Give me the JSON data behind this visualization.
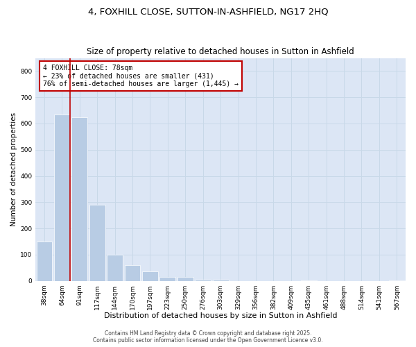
{
  "title": "4, FOXHILL CLOSE, SUTTON-IN-ASHFIELD, NG17 2HQ",
  "subtitle": "Size of property relative to detached houses in Sutton in Ashfield",
  "xlabel": "Distribution of detached houses by size in Sutton in Ashfield",
  "ylabel": "Number of detached properties",
  "categories": [
    "38sqm",
    "64sqm",
    "91sqm",
    "117sqm",
    "144sqm",
    "170sqm",
    "197sqm",
    "223sqm",
    "250sqm",
    "276sqm",
    "303sqm",
    "329sqm",
    "356sqm",
    "382sqm",
    "409sqm",
    "435sqm",
    "461sqm",
    "488sqm",
    "514sqm",
    "541sqm",
    "567sqm"
  ],
  "values": [
    150,
    635,
    625,
    290,
    100,
    60,
    35,
    15,
    15,
    5,
    5,
    0,
    0,
    0,
    0,
    2,
    0,
    0,
    0,
    0,
    2
  ],
  "bar_color": "#b8cce4",
  "property_line_x": 1.45,
  "property_line_color": "#c00000",
  "annotation_text": "4 FOXHILL CLOSE: 78sqm\n← 23% of detached houses are smaller (431)\n76% of semi-detached houses are larger (1,445) →",
  "annotation_box_color": "#c00000",
  "ylim": [
    0,
    850
  ],
  "yticks": [
    0,
    100,
    200,
    300,
    400,
    500,
    600,
    700,
    800
  ],
  "grid_color": "#c8d8e8",
  "background_color": "#dce6f5",
  "footer": "Contains HM Land Registry data © Crown copyright and database right 2025.\nContains public sector information licensed under the Open Government Licence v3.0.",
  "title_fontsize": 9.5,
  "subtitle_fontsize": 8.5,
  "xlabel_fontsize": 8,
  "ylabel_fontsize": 7.5,
  "tick_fontsize": 6.5,
  "annotation_fontsize": 7,
  "footer_fontsize": 5.5
}
